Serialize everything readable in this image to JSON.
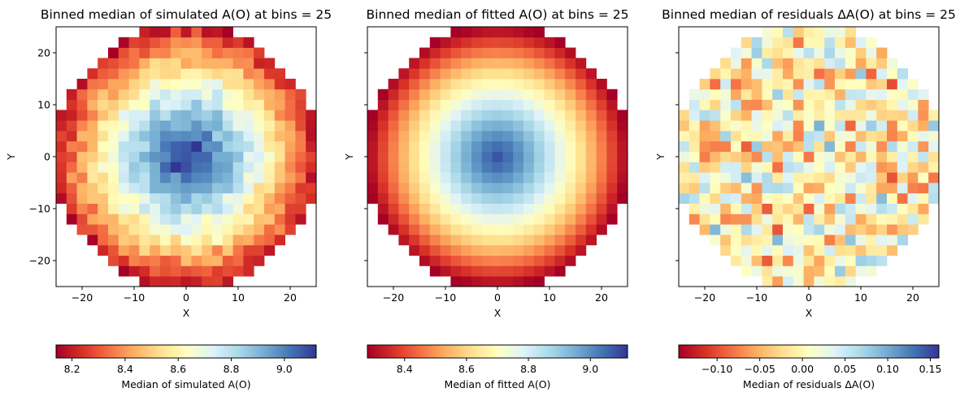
{
  "chart_data": [
    {
      "type": "heatmap",
      "title": "Binned median of simulated A(O) at bins = 25",
      "xlabel": "X",
      "ylabel": "Y",
      "xlim": [
        -25,
        25
      ],
      "ylim": [
        -25,
        25
      ],
      "bins": 25,
      "xticks": [
        -20,
        -10,
        0,
        10,
        20
      ],
      "yticks": [
        -20,
        -10,
        0,
        10,
        20
      ],
      "xtick_labels": [
        "−20",
        "−10",
        "0",
        "10",
        "20"
      ],
      "ytick_labels": [
        "−20",
        "−10",
        "0",
        "10",
        "20"
      ],
      "show_ytick_labels": true,
      "colormap": "RdYlBu",
      "value_range": [
        8.14,
        9.12
      ],
      "model": {
        "kind": "radial",
        "center": 9.1,
        "edge": 8.2,
        "noise": 0.06,
        "seed": 11
      },
      "colorbar": {
        "label": "Median of simulated A(O)",
        "ticks": [
          8.2,
          8.4,
          8.6,
          8.8,
          9.0
        ],
        "tick_labels": [
          "8.2",
          "8.4",
          "8.6",
          "8.8",
          "9.0"
        ]
      }
    },
    {
      "type": "heatmap",
      "title": "Binned median of fitted A(O) at bins = 25",
      "xlabel": "X",
      "ylabel": "Y",
      "xlim": [
        -25,
        25
      ],
      "ylim": [
        -25,
        25
      ],
      "bins": 25,
      "xticks": [
        -20,
        -10,
        0,
        10,
        20
      ],
      "yticks": [
        -20,
        -10,
        0,
        10,
        20
      ],
      "xtick_labels": [
        "−20",
        "−10",
        "0",
        "10",
        "20"
      ],
      "ytick_labels": [
        "",
        "",
        "",
        "",
        ""
      ],
      "show_ytick_labels": false,
      "colormap": "RdYlBu",
      "value_range": [
        8.28,
        9.12
      ],
      "model": {
        "kind": "radial",
        "center": 9.08,
        "edge": 8.28,
        "noise": 0.0,
        "seed": 3
      },
      "colorbar": {
        "label": "Median of fitted A(O)",
        "ticks": [
          8.4,
          8.6,
          8.8,
          9.0
        ],
        "tick_labels": [
          "8.4",
          "8.6",
          "8.8",
          "9.0"
        ]
      }
    },
    {
      "type": "heatmap",
      "title": "Binned median of residuals ΔA(O) at bins = 25",
      "xlabel": "X",
      "ylabel": "Y",
      "xlim": [
        -25,
        25
      ],
      "ylim": [
        -25,
        25
      ],
      "bins": 25,
      "xticks": [
        -20,
        -10,
        0,
        10,
        20
      ],
      "yticks": [
        -20,
        -10,
        0,
        10,
        20
      ],
      "xtick_labels": [
        "−20",
        "−10",
        "0",
        "10",
        "20"
      ],
      "ytick_labels": [
        "",
        "",
        "",
        "",
        ""
      ],
      "show_ytick_labels": false,
      "colormap": "RdYlBu",
      "value_range": [
        -0.145,
        0.16
      ],
      "model": {
        "kind": "noise",
        "center": 0.0,
        "edge": 0.0,
        "noise": 0.06,
        "seed": 29
      },
      "colorbar": {
        "label": "Median of residuals ΔA(O)",
        "ticks": [
          -0.1,
          -0.05,
          0.0,
          0.05,
          0.1,
          0.15
        ],
        "tick_labels": [
          "−0.10",
          "−0.05",
          "0.00",
          "0.05",
          "0.10",
          "0.15"
        ]
      }
    }
  ]
}
